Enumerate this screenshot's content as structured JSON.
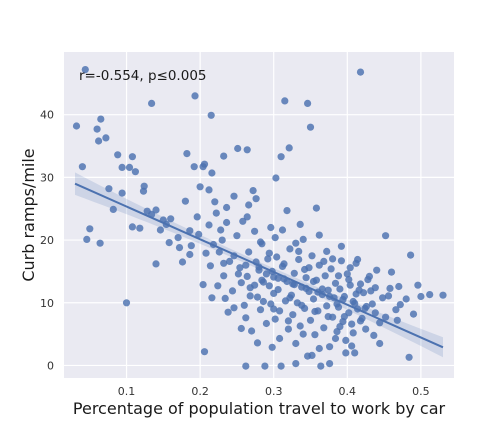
{
  "chart_data": {
    "type": "scatter",
    "title": "",
    "xlabel": "Percentage of population travel to work by car",
    "ylabel": "Curb ramps/mile",
    "annotation": "r=-0.554, p≤0.005",
    "xlim": [
      0.015,
      0.545
    ],
    "ylim": [
      -2,
      50
    ],
    "xticks": [
      0.1,
      0.2,
      0.3,
      0.4,
      0.5
    ],
    "xtick_labels": [
      "0.1",
      "0.2",
      "0.3",
      "0.4",
      "0.5"
    ],
    "yticks": [
      0,
      10,
      20,
      30,
      40
    ],
    "ytick_labels": [
      "0",
      "10",
      "20",
      "30",
      "40"
    ],
    "grid": true,
    "background": "#eaeaf2",
    "point_color": "#4c72b0",
    "regression": {
      "x": [
        0.03,
        0.53
      ],
      "y": [
        29.0,
        2.9
      ],
      "ci_halfwidth_edges": [
        1.8,
        1.6
      ],
      "ci_halfwidth_center": 0.6
    },
    "points": [
      [
        0.032,
        38.2
      ],
      [
        0.044,
        47.2
      ],
      [
        0.06,
        37.7
      ],
      [
        0.065,
        39.3
      ],
      [
        0.062,
        35.8
      ],
      [
        0.072,
        36.3
      ],
      [
        0.04,
        31.7
      ],
      [
        0.088,
        33.6
      ],
      [
        0.094,
        31.6
      ],
      [
        0.104,
        31.6
      ],
      [
        0.108,
        33.3
      ],
      [
        0.112,
        30.9
      ],
      [
        0.134,
        41.8
      ],
      [
        0.193,
        43.0
      ],
      [
        0.204,
        31.7
      ],
      [
        0.215,
        39.9
      ],
      [
        0.251,
        34.6
      ],
      [
        0.315,
        42.2
      ],
      [
        0.346,
        41.8
      ],
      [
        0.35,
        38.0
      ],
      [
        0.418,
        46.8
      ],
      [
        0.182,
        33.8
      ],
      [
        0.192,
        31.7
      ],
      [
        0.232,
        33.4
      ],
      [
        0.264,
        34.4
      ],
      [
        0.303,
        29.9
      ],
      [
        0.321,
        34.7
      ],
      [
        0.31,
        33.3
      ],
      [
        0.046,
        20.1
      ],
      [
        0.05,
        21.8
      ],
      [
        0.064,
        19.5
      ],
      [
        0.076,
        28.2
      ],
      [
        0.082,
        24.9
      ],
      [
        0.094,
        27.5
      ],
      [
        0.1,
        10.0
      ],
      [
        0.108,
        22.1
      ],
      [
        0.123,
        27.8
      ],
      [
        0.124,
        28.6
      ],
      [
        0.134,
        24.1
      ],
      [
        0.14,
        24.8
      ],
      [
        0.14,
        16.2
      ],
      [
        0.15,
        23.2
      ],
      [
        0.154,
        22.5
      ],
      [
        0.16,
        23.4
      ],
      [
        0.172,
        18.8
      ],
      [
        0.176,
        16.5
      ],
      [
        0.18,
        26.2
      ],
      [
        0.186,
        21.5
      ],
      [
        0.188,
        19.1
      ],
      [
        0.196,
        23.7
      ],
      [
        0.2,
        28.5
      ],
      [
        0.204,
        12.9
      ],
      [
        0.206,
        2.2
      ],
      [
        0.208,
        17.9
      ],
      [
        0.212,
        22.4
      ],
      [
        0.214,
        15.9
      ],
      [
        0.216,
        10.8
      ],
      [
        0.22,
        26.1
      ],
      [
        0.226,
        18.1
      ],
      [
        0.23,
        20.0
      ],
      [
        0.232,
        14.3
      ],
      [
        0.234,
        10.7
      ],
      [
        0.236,
        22.8
      ],
      [
        0.24,
        16.6
      ],
      [
        0.244,
        11.9
      ],
      [
        0.246,
        27.0
      ],
      [
        0.25,
        20.7
      ],
      [
        0.254,
        15.6
      ],
      [
        0.256,
        13.2
      ],
      [
        0.26,
        9.6
      ],
      [
        0.262,
        7.6
      ],
      [
        0.262,
        -0.1
      ],
      [
        0.264,
        23.7
      ],
      [
        0.266,
        18.1
      ],
      [
        0.268,
        12.4
      ],
      [
        0.27,
        5.5
      ],
      [
        0.272,
        27.9
      ],
      [
        0.274,
        21.4
      ],
      [
        0.276,
        16.5
      ],
      [
        0.278,
        10.9
      ],
      [
        0.28,
        15.7
      ],
      [
        0.282,
        8.9
      ],
      [
        0.284,
        19.4
      ],
      [
        0.286,
        13.3
      ],
      [
        0.288,
        -0.1
      ],
      [
        0.29,
        6.7
      ],
      [
        0.292,
        17.0
      ],
      [
        0.294,
        12.7
      ],
      [
        0.296,
        9.8
      ],
      [
        0.298,
        15.0
      ],
      [
        0.3,
        11.5
      ],
      [
        0.302,
        7.4
      ],
      [
        0.304,
        17.3
      ],
      [
        0.306,
        13.9
      ],
      [
        0.308,
        4.3
      ],
      [
        0.31,
        -0.1
      ],
      [
        0.312,
        21.6
      ],
      [
        0.314,
        16.2
      ],
      [
        0.316,
        10.3
      ],
      [
        0.318,
        13.4
      ],
      [
        0.32,
        5.8
      ],
      [
        0.322,
        18.6
      ],
      [
        0.324,
        11.2
      ],
      [
        0.326,
        8.1
      ],
      [
        0.328,
        14.7
      ],
      [
        0.33,
        3.5
      ],
      [
        0.332,
        10.0
      ],
      [
        0.334,
        16.9
      ],
      [
        0.336,
        6.3
      ],
      [
        0.338,
        12.5
      ],
      [
        0.34,
        20.1
      ],
      [
        0.342,
        9.1
      ],
      [
        0.344,
        14.0
      ],
      [
        0.346,
        1.5
      ],
      [
        0.348,
        11.8
      ],
      [
        0.35,
        7.2
      ],
      [
        0.352,
        17.5
      ],
      [
        0.354,
        10.6
      ],
      [
        0.356,
        4.9
      ],
      [
        0.358,
        13.6
      ],
      [
        0.36,
        8.7
      ],
      [
        0.362,
        16.0
      ],
      [
        0.364,
        -0.1
      ],
      [
        0.366,
        11.3
      ],
      [
        0.368,
        6.0
      ],
      [
        0.37,
        14.3
      ],
      [
        0.372,
        9.5
      ],
      [
        0.374,
        12.0
      ],
      [
        0.376,
        3.0
      ],
      [
        0.378,
        15.4
      ],
      [
        0.38,
        7.7
      ],
      [
        0.382,
        10.8
      ],
      [
        0.384,
        13.1
      ],
      [
        0.386,
        5.4
      ],
      [
        0.388,
        9.3
      ],
      [
        0.39,
        12.2
      ],
      [
        0.392,
        16.7
      ],
      [
        0.394,
        7.0
      ],
      [
        0.396,
        11.0
      ],
      [
        0.398,
        4.0
      ],
      [
        0.4,
        14.6
      ],
      [
        0.402,
        8.4
      ],
      [
        0.404,
        12.8
      ],
      [
        0.406,
        6.6
      ],
      [
        0.408,
        10.2
      ],
      [
        0.41,
        2.0
      ],
      [
        0.412,
        16.3
      ],
      [
        0.414,
        9.0
      ],
      [
        0.416,
        12.0
      ],
      [
        0.42,
        7.5
      ],
      [
        0.422,
        11.6
      ],
      [
        0.425,
        5.8
      ],
      [
        0.43,
        14.2
      ],
      [
        0.434,
        9.8
      ],
      [
        0.438,
        12.4
      ],
      [
        0.444,
        6.8
      ],
      [
        0.452,
        20.7
      ],
      [
        0.456,
        11.1
      ],
      [
        0.46,
        14.9
      ],
      [
        0.466,
        8.9
      ],
      [
        0.47,
        12.6
      ],
      [
        0.48,
        10.6
      ],
      [
        0.486,
        17.6
      ],
      [
        0.49,
        8.2
      ],
      [
        0.484,
        1.3
      ],
      [
        0.496,
        12.8
      ],
      [
        0.512,
        11.3
      ],
      [
        0.53,
        11.2
      ],
      [
        0.206,
        32.1
      ],
      [
        0.216,
        30.7
      ],
      [
        0.212,
        28.0
      ],
      [
        0.222,
        24.3
      ],
      [
        0.228,
        21.6
      ],
      [
        0.236,
        25.2
      ],
      [
        0.258,
        23.0
      ],
      [
        0.266,
        25.6
      ],
      [
        0.276,
        26.6
      ],
      [
        0.282,
        19.7
      ],
      [
        0.296,
        22.0
      ],
      [
        0.302,
        20.4
      ],
      [
        0.318,
        24.7
      ],
      [
        0.33,
        19.5
      ],
      [
        0.336,
        22.5
      ],
      [
        0.358,
        25.1
      ],
      [
        0.362,
        20.8
      ],
      [
        0.372,
        18.2
      ],
      [
        0.38,
        17.0
      ],
      [
        0.392,
        19.0
      ],
      [
        0.404,
        15.6
      ],
      [
        0.414,
        16.9
      ],
      [
        0.428,
        13.7
      ],
      [
        0.44,
        15.2
      ],
      [
        0.444,
        3.5
      ],
      [
        0.418,
        7.1
      ],
      [
        0.398,
        2.0
      ],
      [
        0.376,
        0.3
      ],
      [
        0.352,
        1.6
      ],
      [
        0.33,
        0.3
      ],
      [
        0.298,
        2.9
      ],
      [
        0.278,
        3.6
      ],
      [
        0.256,
        5.9
      ],
      [
        0.238,
        8.5
      ],
      [
        0.224,
        12.7
      ],
      [
        0.246,
        9.2
      ],
      [
        0.268,
        11.1
      ],
      [
        0.286,
        10.2
      ],
      [
        0.308,
        8.7
      ],
      [
        0.326,
        13.0
      ],
      [
        0.342,
        15.3
      ],
      [
        0.354,
        13.4
      ],
      [
        0.366,
        12.2
      ],
      [
        0.386,
        9.8
      ],
      [
        0.396,
        7.8
      ],
      [
        0.412,
        11.4
      ],
      [
        0.426,
        9.4
      ],
      [
        0.448,
        10.8
      ],
      [
        0.458,
        12.3
      ],
      [
        0.472,
        9.7
      ],
      [
        0.5,
        11.0
      ],
      [
        0.436,
        4.8
      ],
      [
        0.406,
        3.1
      ],
      [
        0.384,
        4.3
      ],
      [
        0.362,
        2.7
      ],
      [
        0.34,
        5.0
      ],
      [
        0.32,
        7.1
      ],
      [
        0.3,
        9.0
      ],
      [
        0.274,
        12.8
      ],
      [
        0.252,
        14.6
      ],
      [
        0.232,
        16.3
      ],
      [
        0.218,
        19.3
      ],
      [
        0.198,
        20.9
      ],
      [
        0.186,
        17.7
      ],
      [
        0.17,
        20.4
      ],
      [
        0.158,
        19.6
      ],
      [
        0.146,
        21.6
      ],
      [
        0.128,
        24.6
      ],
      [
        0.118,
        21.9
      ],
      [
        0.294,
        17.9
      ],
      [
        0.312,
        15.8
      ],
      [
        0.334,
        18.2
      ],
      [
        0.348,
        15.6
      ],
      [
        0.368,
        16.6
      ],
      [
        0.388,
        14.3
      ],
      [
        0.402,
        13.7
      ],
      [
        0.418,
        13.0
      ],
      [
        0.432,
        11.9
      ],
      [
        0.264,
        14.2
      ],
      [
        0.284,
        13.6
      ],
      [
        0.306,
        12.1
      ],
      [
        0.322,
        10.8
      ],
      [
        0.338,
        9.6
      ],
      [
        0.356,
        8.6
      ],
      [
        0.374,
        7.8
      ],
      [
        0.39,
        6.2
      ],
      [
        0.408,
        5.2
      ],
      [
        0.246,
        17.5
      ],
      [
        0.262,
        16.0
      ],
      [
        0.28,
        15.2
      ],
      [
        0.29,
        14.6
      ],
      [
        0.3,
        14.1
      ],
      [
        0.314,
        13.8
      ],
      [
        0.328,
        12.9
      ],
      [
        0.344,
        12.3
      ],
      [
        0.36,
        11.7
      ],
      [
        0.376,
        11.0
      ],
      [
        0.394,
        10.5
      ],
      [
        0.41,
        9.9
      ],
      [
        0.424,
        9.1
      ],
      [
        0.438,
        8.4
      ],
      [
        0.452,
        7.7
      ],
      [
        0.468,
        7.2
      ]
    ]
  }
}
